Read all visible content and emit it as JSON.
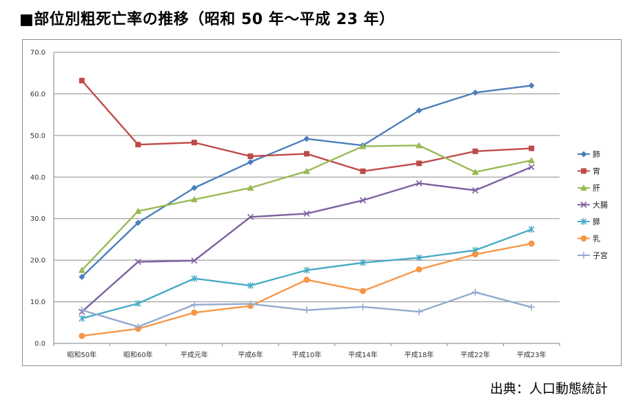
{
  "title": "■部位別粗死亡率の推移（昭和 50 年～平成 23 年）",
  "source": "出典：人口動態統計",
  "chart_data": {
    "type": "line",
    "title": "",
    "xlabel": "",
    "ylabel": "",
    "ylim": [
      0,
      70
    ],
    "yticks": [
      "0.0",
      "10.0",
      "20.0",
      "30.0",
      "40.0",
      "50.0",
      "60.0",
      "70.0"
    ],
    "grid": true,
    "legend_position": "right",
    "categories": [
      "昭和50年",
      "昭和60年",
      "平成元年",
      "平成6年",
      "平成10年",
      "平成14年",
      "平成18年",
      "平成22年",
      "平成23年"
    ],
    "series": [
      {
        "name": "肺",
        "color": "#4a7ebb",
        "marker": "diamond",
        "values": [
          16.0,
          29.0,
          37.4,
          43.6,
          49.2,
          47.6,
          56.0,
          60.3,
          62.0
        ]
      },
      {
        "name": "胃",
        "color": "#be4b48",
        "marker": "square",
        "values": [
          63.2,
          47.8,
          48.3,
          45.0,
          45.6,
          41.4,
          43.3,
          46.2,
          46.9
        ]
      },
      {
        "name": "肝",
        "color": "#98b954",
        "marker": "triangle",
        "values": [
          17.6,
          31.8,
          34.6,
          37.4,
          41.4,
          47.4,
          47.6,
          41.2,
          44.0
        ]
      },
      {
        "name": "大腸",
        "color": "#7d60a0",
        "marker": "x",
        "values": [
          7.6,
          19.6,
          19.9,
          30.4,
          31.2,
          34.4,
          38.5,
          36.8,
          42.4
        ]
      },
      {
        "name": "膵",
        "color": "#46aac5",
        "marker": "star",
        "values": [
          6.0,
          9.6,
          15.6,
          13.9,
          17.6,
          19.4,
          20.6,
          22.4,
          27.4
        ]
      },
      {
        "name": "乳",
        "color": "#f79646",
        "marker": "circle",
        "values": [
          1.8,
          3.5,
          7.4,
          9.0,
          15.3,
          12.6,
          17.8,
          21.4,
          24.0
        ]
      },
      {
        "name": "子宮",
        "color": "#92a9cf",
        "marker": "plus",
        "values": [
          8.0,
          4.0,
          9.3,
          9.5,
          8.0,
          8.8,
          7.6,
          12.3,
          8.7
        ]
      }
    ]
  }
}
